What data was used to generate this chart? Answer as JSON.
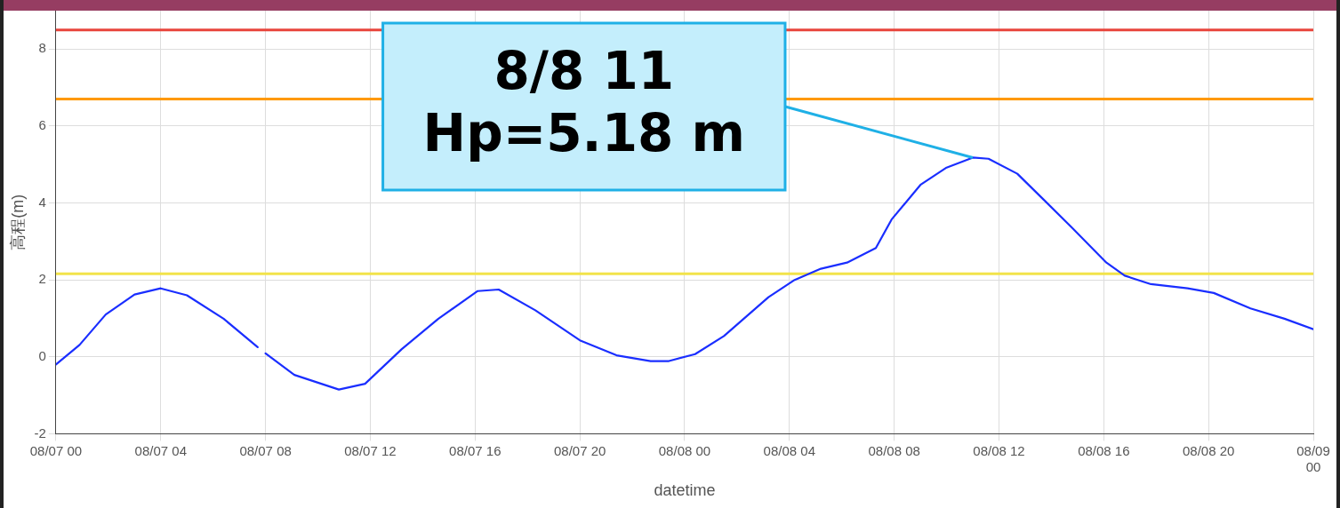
{
  "chart_data": {
    "type": "line",
    "xlabel": "datetime",
    "ylabel": "高程(m)",
    "xlim": [
      "--08-07T00:00",
      "--08-09T00:00"
    ],
    "xticks": [
      {
        "value": "--08-07T00:00",
        "label": "08/07 00"
      },
      {
        "value": "--08-07T04:00",
        "label": "08/07 04"
      },
      {
        "value": "--08-07T08:00",
        "label": "08/07 08"
      },
      {
        "value": "--08-07T12:00",
        "label": "08/07 12"
      },
      {
        "value": "--08-07T16:00",
        "label": "08/07 16"
      },
      {
        "value": "--08-07T20:00",
        "label": "08/07 20"
      },
      {
        "value": "--08-08T00:00",
        "label": "08/08 00"
      },
      {
        "value": "--08-08T04:00",
        "label": "08/08 04"
      },
      {
        "value": "--08-08T08:00",
        "label": "08/08 08"
      },
      {
        "value": "--08-08T12:00",
        "label": "08/08 12"
      },
      {
        "value": "--08-08T16:00",
        "label": "08/08 16"
      },
      {
        "value": "--08-08T20:00",
        "label": "08/08 20"
      },
      {
        "value": "--08-09T00:00",
        "label": "08/09 00"
      }
    ],
    "ylim": [
      -2,
      9
    ],
    "yticks": [
      -2,
      0,
      2,
      4,
      6,
      8
    ],
    "grid": true,
    "legend": false,
    "marker": "none",
    "line_style": "solid",
    "series": [
      {
        "color": "#1a2eff",
        "x": [
          "--08-07T00:00",
          "--08-07T00:54",
          "--08-07T01:54",
          "--08-07T03:00",
          "--08-07T04:00",
          "--08-07T05:00",
          "--08-07T06:24",
          "--08-07T07:42",
          "--08-07T07:51",
          "--08-07T08:00",
          "--08-07T09:06",
          "--08-07T10:48",
          "--08-07T11:48",
          "--08-07T13:12",
          "--08-07T14:36",
          "--08-07T16:06",
          "--08-07T16:54",
          "--08-07T18:18",
          "--08-07T20:00",
          "--08-07T21:24",
          "--08-07T22:42",
          "--08-07T23:24",
          "--08-08T00:24",
          "--08-08T01:30",
          "--08-08T03:12",
          "--08-08T04:12",
          "--08-08T05:12",
          "--08-08T06:12",
          "--08-08T07:18",
          "--08-08T07:54",
          "--08-08T09:00",
          "--08-08T10:00",
          "--08-08T11:00",
          "--08-08T11:36",
          "--08-08T12:42",
          "--08-08T13:42",
          "--08-08T14:48",
          "--08-08T16:06",
          "--08-08T16:48",
          "--08-08T17:48",
          "--08-08T19:12",
          "--08-08T20:12",
          "--08-08T21:36",
          "--08-08T22:54",
          "--08-09T00:00"
        ],
        "values": [
          -0.2,
          0.31,
          1.1,
          1.62,
          1.78,
          1.6,
          0.99,
          0.25,
          null,
          0.09,
          -0.47,
          -0.85,
          -0.7,
          0.2,
          0.99,
          1.71,
          1.75,
          1.21,
          0.43,
          0.04,
          -0.11,
          -0.11,
          0.07,
          0.54,
          1.55,
          2.0,
          2.29,
          2.45,
          2.83,
          3.57,
          4.47,
          4.92,
          5.18,
          5.15,
          4.76,
          4.09,
          3.35,
          2.45,
          2.11,
          1.89,
          1.78,
          1.66,
          1.26,
          0.99,
          0.72
        ]
      }
    ],
    "ref_lines": [
      {
        "axis": "y",
        "value": 8.5,
        "color": "#e8453c"
      },
      {
        "axis": "y",
        "value": 6.7,
        "color": "#ff9900"
      },
      {
        "axis": "y",
        "value": 2.16,
        "color": "#f2e34a"
      }
    ],
    "annotations": [
      {
        "text": "8/8 11\nHp=5.18 m",
        "x": "--08-08T11:00",
        "y": 5.18
      }
    ]
  }
}
